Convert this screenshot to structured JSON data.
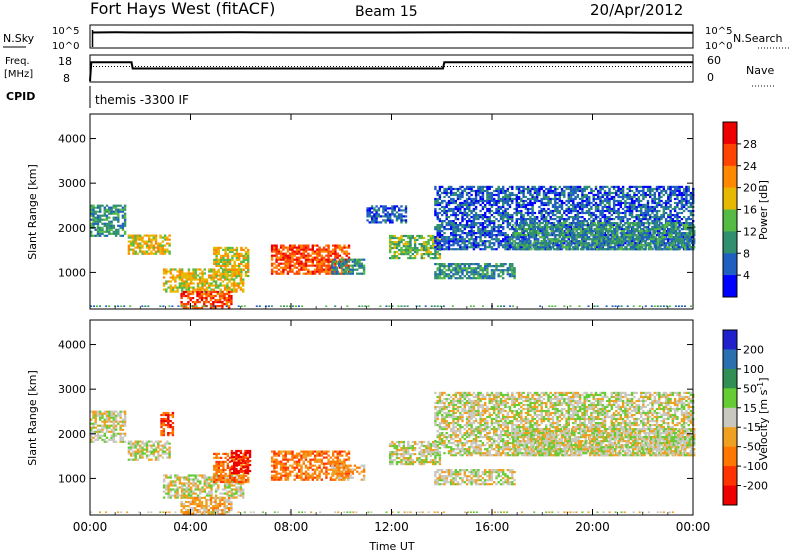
{
  "header": {
    "station": "Fort Hays West (fitACF)",
    "beam": "Beam 15",
    "date": "20/Apr/2012"
  },
  "top_panels": {
    "nsky_label": "N.Sky",
    "nsearch_label": "N.Search",
    "nsky_ticks": [
      "10^5",
      "10^0"
    ],
    "nsearch_ticks": [
      "10^5",
      "10^0"
    ],
    "freq_label_1": "Freq.",
    "freq_label_2": "[MHz]",
    "freq_ticks": [
      "18",
      "8"
    ],
    "nave_label": "Nave",
    "nave_ticks": [
      "60",
      "0"
    ],
    "cpid_label": "CPID",
    "cpid_value": "themis -3300 IF"
  },
  "colors": {
    "power_scale": [
      "#0000ff",
      "#1f5fbf",
      "#2f8f6f",
      "#55bb44",
      "#e6b800",
      "#ff8800",
      "#ff4400",
      "#ee0000"
    ],
    "velocity_scale": [
      "#2020cc",
      "#2a6fb0",
      "#2f8f55",
      "#66cc33",
      "#c8c8c0",
      "#f0a020",
      "#ff7700",
      "#ff3300",
      "#ee0000"
    ]
  },
  "chart_data": [
    {
      "type": "line",
      "panel": "N.Sky / N.Search",
      "x_unit": "hours UT",
      "xlim": [
        0,
        24
      ],
      "series": [
        {
          "name": "N.Sky",
          "x": [
            0.1,
            1,
            3,
            6,
            9,
            12,
            15,
            18,
            21,
            24
          ],
          "y_log10": [
            4.8,
            4.9,
            4.8,
            4.9,
            4.8,
            4.8,
            4.9,
            4.8,
            4.8,
            4.7
          ]
        }
      ]
    },
    {
      "type": "line",
      "panel": "Freq. / Nave",
      "x_unit": "hours UT",
      "xlim": [
        0,
        24
      ],
      "ylim": [
        8,
        18
      ],
      "series": [
        {
          "name": "Freq.",
          "x": [
            0,
            0.05,
            1.65,
            1.7,
            14.05,
            14.1,
            24
          ],
          "y": [
            8,
            15.5,
            15.5,
            13,
            13,
            15.5,
            15.5
          ]
        },
        {
          "name": "Nave",
          "x": [
            0,
            24
          ],
          "y": [
            13.8,
            13.8
          ]
        }
      ]
    },
    {
      "type": "heatmap",
      "panel": "power",
      "title": "",
      "xlabel": "",
      "ylabel": "Slant Range [km]",
      "xlim": [
        0,
        24
      ],
      "ylim": [
        180,
        4550
      ],
      "xticks": [
        "00:00",
        "04:00",
        "08:00",
        "12:00",
        "16:00",
        "20:00",
        "00:00"
      ],
      "yticks": [
        "1000",
        "2000",
        "3000",
        "4000"
      ],
      "colorbar": {
        "label": "Power [dB]",
        "ticks": [
          "4",
          "8",
          "12",
          "16",
          "20",
          "24",
          "28"
        ]
      },
      "regions": [
        {
          "t0": 0.0,
          "t1": 1.4,
          "r0": 1800,
          "r1": 2500,
          "level": 2
        },
        {
          "t0": 1.5,
          "t1": 3.2,
          "r0": 1400,
          "r1": 1850,
          "level": 4
        },
        {
          "t0": 2.9,
          "t1": 6.1,
          "r0": 550,
          "r1": 1050,
          "level": 4
        },
        {
          "t0": 3.6,
          "t1": 5.6,
          "r0": 180,
          "r1": 550,
          "level": 6
        },
        {
          "t0": 4.9,
          "t1": 6.3,
          "r0": 900,
          "r1": 1550,
          "level": 4
        },
        {
          "t0": 7.2,
          "t1": 10.3,
          "r0": 950,
          "r1": 1600,
          "level": 6
        },
        {
          "t0": 9.6,
          "t1": 10.9,
          "r0": 950,
          "r1": 1300,
          "level": 2
        },
        {
          "t0": 11.0,
          "t1": 12.6,
          "r0": 2100,
          "r1": 2500,
          "level": 1
        },
        {
          "t0": 11.9,
          "t1": 13.9,
          "r0": 1300,
          "r1": 1800,
          "level": 3
        },
        {
          "t0": 13.7,
          "t1": 24.0,
          "r0": 1500,
          "r1": 2900,
          "level": 1
        },
        {
          "t0": 13.7,
          "t1": 16.9,
          "r0": 850,
          "r1": 1200,
          "level": 2
        },
        {
          "t0": 16.8,
          "t1": 24.0,
          "r0": 1500,
          "r1": 2100,
          "level": 2
        }
      ]
    },
    {
      "type": "heatmap",
      "panel": "velocity",
      "title": "",
      "xlabel": "Time UT",
      "ylabel": "Slant Range [km]",
      "xlim": [
        0,
        24
      ],
      "ylim": [
        180,
        4550
      ],
      "xticks": [
        "00:00",
        "04:00",
        "08:00",
        "12:00",
        "16:00",
        "20:00",
        "00:00"
      ],
      "yticks": [
        "1000",
        "2000",
        "3000",
        "4000"
      ],
      "colorbar": {
        "label": "Velocity [m s^-1]",
        "ticks": [
          "200",
          "100",
          "50",
          "15",
          "-15",
          "-50",
          "-100",
          "-200"
        ]
      },
      "regions": [
        {
          "t0": 0.0,
          "t1": 1.4,
          "r0": 1800,
          "r1": 2500,
          "level": 4
        },
        {
          "t0": 2.8,
          "t1": 3.3,
          "r0": 1950,
          "r1": 2450,
          "level": 7
        },
        {
          "t0": 1.5,
          "t1": 3.2,
          "r0": 1400,
          "r1": 1850,
          "level": 4
        },
        {
          "t0": 2.9,
          "t1": 6.1,
          "r0": 550,
          "r1": 1050,
          "level": 4
        },
        {
          "t0": 3.6,
          "t1": 5.6,
          "r0": 180,
          "r1": 550,
          "level": 5
        },
        {
          "t0": 4.9,
          "t1": 6.3,
          "r0": 900,
          "r1": 1550,
          "level": 6
        },
        {
          "t0": 5.6,
          "t1": 6.4,
          "r0": 1100,
          "r1": 1600,
          "level": 8
        },
        {
          "t0": 7.2,
          "t1": 10.3,
          "r0": 950,
          "r1": 1600,
          "level": 6
        },
        {
          "t0": 9.6,
          "t1": 10.9,
          "r0": 950,
          "r1": 1300,
          "level": 5
        },
        {
          "t0": 11.9,
          "t1": 13.9,
          "r0": 1300,
          "r1": 1800,
          "level": 4
        },
        {
          "t0": 13.7,
          "t1": 24.0,
          "r0": 1500,
          "r1": 2900,
          "level": 4
        },
        {
          "t0": 13.7,
          "t1": 16.9,
          "r0": 850,
          "r1": 1200,
          "level": 4
        },
        {
          "t0": 16.8,
          "t1": 24.0,
          "r0": 1500,
          "r1": 2100,
          "level": 4
        }
      ]
    }
  ]
}
